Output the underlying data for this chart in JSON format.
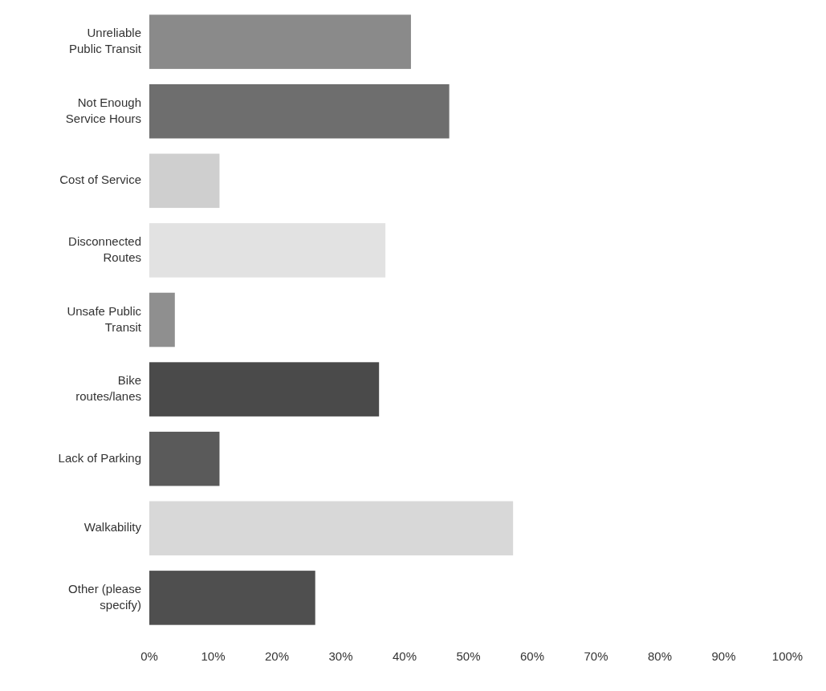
{
  "chart_data": {
    "type": "bar",
    "orientation": "horizontal",
    "categories": [
      "Unreliable Public Transit",
      "Not Enough Service Hours",
      "Cost of Service",
      "Disconnected Routes",
      "Unsafe Public Transit",
      "Bike routes/lanes",
      "Lack of Parking",
      "Walkability",
      "Other (please specify)"
    ],
    "values": [
      41,
      47,
      11,
      37,
      4,
      36,
      11,
      57,
      26
    ],
    "colors": [
      "#8a8a8a",
      "#6e6e6e",
      "#cfcfcf",
      "#e2e2e2",
      "#8f8f8f",
      "#4a4a4a",
      "#5a5a5a",
      "#d8d8d8",
      "#4f4f4f"
    ],
    "xlim": [
      0,
      100
    ],
    "xticks": [
      {
        "value": 0,
        "label": "0%"
      },
      {
        "value": 10,
        "label": "10%"
      },
      {
        "value": 20,
        "label": "20%"
      },
      {
        "value": 30,
        "label": "30%"
      },
      {
        "value": 40,
        "label": "40%"
      },
      {
        "value": 50,
        "label": "50%"
      },
      {
        "value": 60,
        "label": "60%"
      },
      {
        "value": 70,
        "label": "70%"
      },
      {
        "value": 80,
        "label": "80%"
      },
      {
        "value": 90,
        "label": "90%"
      },
      {
        "value": 100,
        "label": "100%"
      }
    ],
    "grid": false
  }
}
